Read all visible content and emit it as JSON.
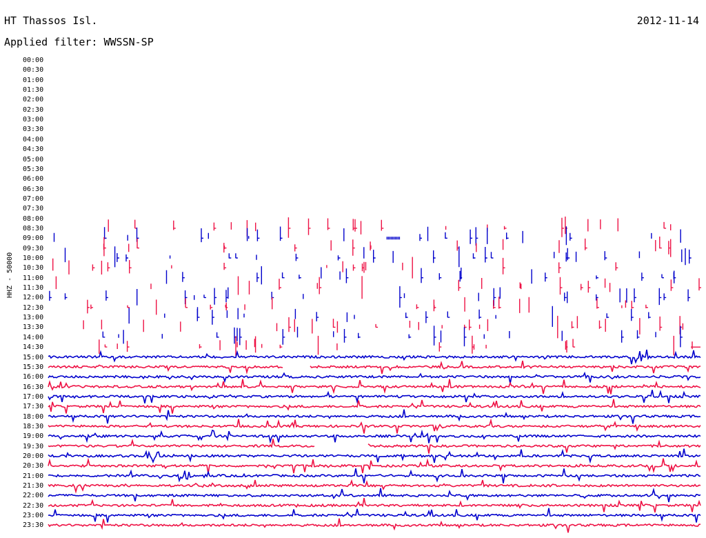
{
  "header": {
    "station": "HT Thassos Isl.",
    "date": "2012-11-14",
    "filter": "Applied filter: WWSSN-SP"
  },
  "chart_data": {
    "type": "line",
    "title": "HT Thassos Isl.",
    "subtitle": "Applied filter: WWSSN-SP",
    "channel_label": "HHZ - 50000",
    "row_labels": [
      "00:00",
      "00:30",
      "01:00",
      "01:30",
      "02:00",
      "02:30",
      "03:00",
      "03:30",
      "04:00",
      "04:30",
      "05:00",
      "05:30",
      "06:00",
      "06:30",
      "07:00",
      "07:30",
      "08:00",
      "08:30",
      "09:00",
      "09:30",
      "10:00",
      "10:30",
      "11:00",
      "11:30",
      "12:00",
      "12:30",
      "13:00",
      "13:30",
      "14:00",
      "14:30",
      "15:00",
      "15:30",
      "16:00",
      "16:30",
      "17:00",
      "17:30",
      "18:00",
      "18:30",
      "19:00",
      "19:30",
      "20:00",
      "20:30",
      "21:00",
      "21:30",
      "22:00",
      "22:30",
      "23:00",
      "23:30"
    ],
    "colors": [
      "#0000cc",
      "#ee1144"
    ],
    "continuous_from": "15:00",
    "sparse_from": "08:30",
    "gaps": [
      {
        "row": "15:30",
        "from": 0.36,
        "to": 0.4
      },
      {
        "row": "19:30",
        "from": 0.41,
        "to": 0.49
      },
      {
        "row": "14:30",
        "from": 0.0,
        "to": 0.98
      }
    ],
    "events": [
      {
        "row": "15:00",
        "at": 0.91,
        "amp": 1.2
      },
      {
        "row": "20:00",
        "at": 0.16,
        "amp": 1.0
      },
      {
        "row": "21:00",
        "at": 0.21,
        "amp": 0.8
      },
      {
        "row": "09:00",
        "at": 0.53,
        "amp": 0.4
      }
    ]
  }
}
